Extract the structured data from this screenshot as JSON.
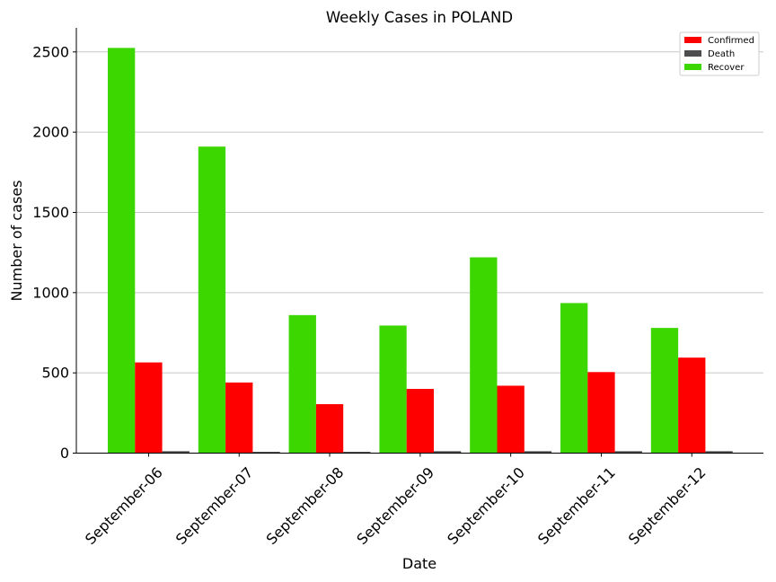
{
  "chart_data": {
    "type": "bar",
    "title": "Weekly Cases in POLAND",
    "xlabel": "Date",
    "ylabel": "Number of cases",
    "categories": [
      "September-06",
      "September-07",
      "September-08",
      "September-09",
      "September-10",
      "September-11",
      "September-12"
    ],
    "series": [
      {
        "name": "Recover",
        "color": "#3cd600",
        "values": [
          2525,
          1910,
          860,
          795,
          1220,
          935,
          780
        ]
      },
      {
        "name": "Confirmed",
        "color": "#ff0000",
        "values": [
          565,
          440,
          305,
          400,
          420,
          505,
          595
        ]
      },
      {
        "name": "Death",
        "color": "#4d4d4d",
        "values": [
          12,
          8,
          8,
          12,
          12,
          12,
          12
        ]
      }
    ],
    "legend_order": [
      "Confirmed",
      "Death",
      "Recover"
    ],
    "yticks": [
      0,
      500,
      1000,
      1500,
      2000,
      2500
    ],
    "ylim": [
      0,
      2650
    ],
    "grid": "horizontal",
    "legend_position": "top-right"
  }
}
